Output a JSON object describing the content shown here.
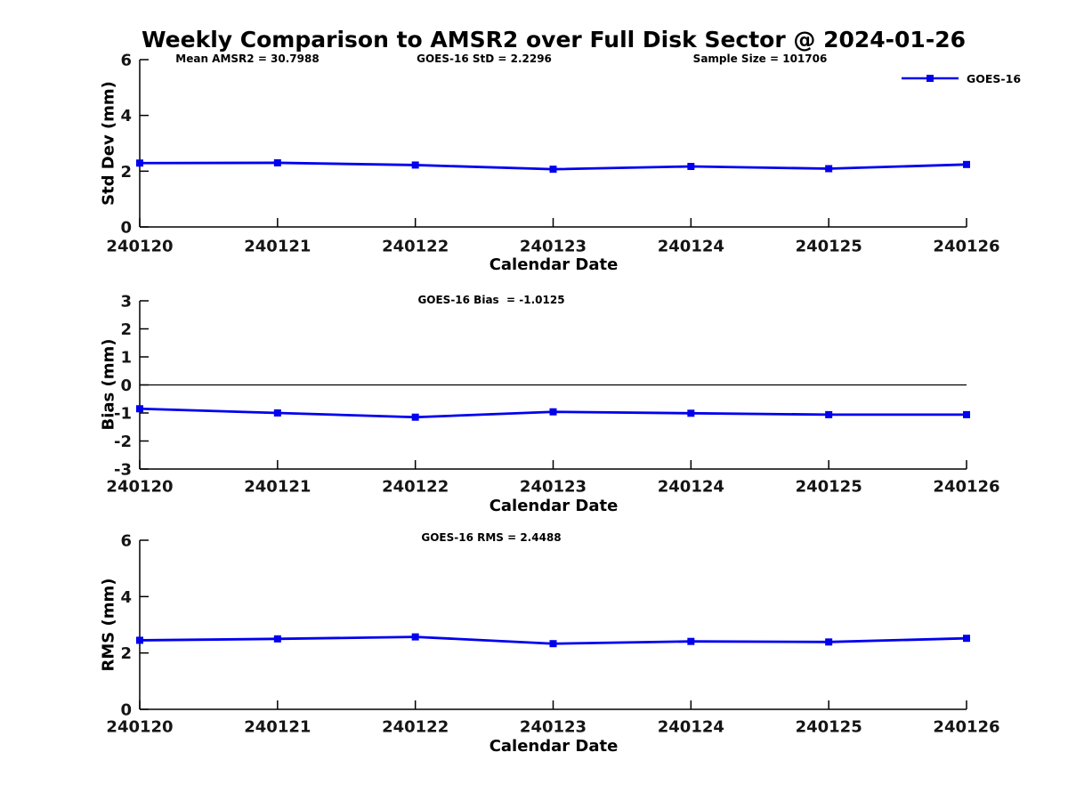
{
  "figure": {
    "title": "Weekly Comparison to AMSR2 over Full Disk Sector @ 2024-01-26",
    "background_color": "#ffffff",
    "axis_color": "#000000",
    "text_color": "#000000",
    "line_color": "#0000EE"
  },
  "legend": {
    "label": "GOES-16",
    "position": "top-right",
    "marker": "filled-square"
  },
  "chart_data": [
    {
      "type": "line",
      "name": "std-dev",
      "categories": [
        "240120",
        "240121",
        "240122",
        "240123",
        "240124",
        "240125",
        "240126"
      ],
      "series": [
        {
          "name": "GOES-16",
          "values": [
            2.29,
            2.3,
            2.22,
            2.07,
            2.17,
            2.09,
            2.24
          ]
        }
      ],
      "annotations": [
        "Mean AMSR2 = 30.7988",
        "GOES-16 StD = 2.2296",
        "Sample Size = 101706"
      ],
      "xlabel": "Calendar Date",
      "ylabel": "Std Dev (mm)",
      "ylim": [
        0,
        6
      ],
      "yticks": [
        0,
        2,
        4,
        6
      ],
      "zero_line": false,
      "grid": false,
      "marker": "square",
      "legend_entries": [
        "GOES-16"
      ]
    },
    {
      "type": "line",
      "name": "bias",
      "categories": [
        "240120",
        "240121",
        "240122",
        "240123",
        "240124",
        "240125",
        "240126"
      ],
      "series": [
        {
          "name": "GOES-16",
          "values": [
            -0.85,
            -1.0,
            -1.15,
            -0.96,
            -1.01,
            -1.06,
            -1.06
          ]
        }
      ],
      "annotations": [
        "GOES-16 Bias  = -1.0125"
      ],
      "xlabel": "Calendar Date",
      "ylabel": "Bias (mm)",
      "ylim": [
        -3,
        3
      ],
      "yticks": [
        -3,
        -2,
        -1,
        0,
        1,
        2,
        3
      ],
      "zero_line": true,
      "grid": false,
      "marker": "square"
    },
    {
      "type": "line",
      "name": "rms",
      "categories": [
        "240120",
        "240121",
        "240122",
        "240123",
        "240124",
        "240125",
        "240126"
      ],
      "series": [
        {
          "name": "GOES-16",
          "values": [
            2.45,
            2.5,
            2.57,
            2.33,
            2.41,
            2.39,
            2.52
          ]
        }
      ],
      "annotations": [
        "GOES-16 RMS = 2.4488"
      ],
      "xlabel": "Calendar Date",
      "ylabel": "RMS (mm)",
      "ylim": [
        0,
        6
      ],
      "yticks": [
        0,
        2,
        4,
        6
      ],
      "zero_line": false,
      "grid": false,
      "marker": "square"
    }
  ]
}
